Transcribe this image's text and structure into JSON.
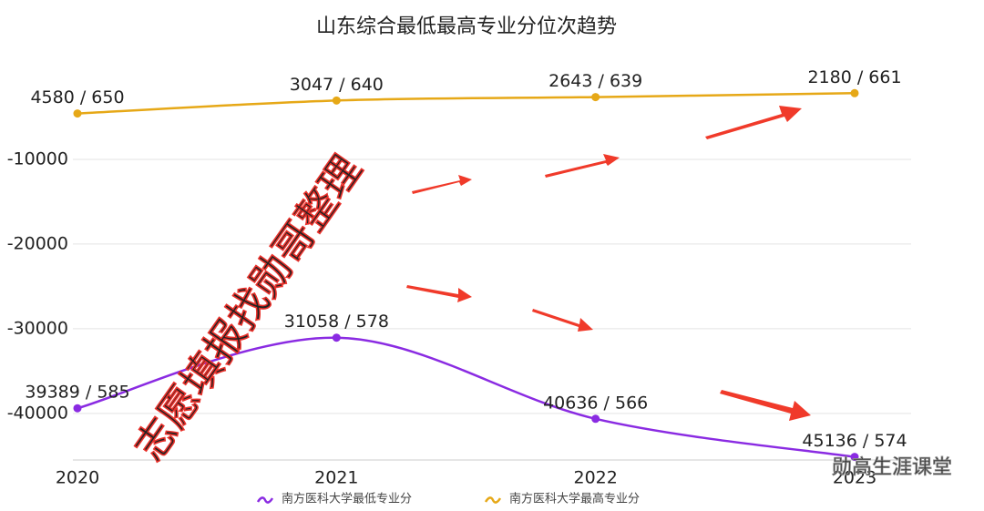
{
  "chart_data": {
    "type": "line",
    "title": "山东综合最低最高专业分位次趋势",
    "categories": [
      "2020",
      "2021",
      "2022",
      "2023"
    ],
    "series": [
      {
        "name": "南方医科大学最低专业分",
        "color": "#8a2be2",
        "values": [
          -39389,
          -31058,
          -40636,
          -45136
        ],
        "value_labels": [
          "39389 / 585",
          "31058 / 578",
          "40636 / 566",
          "45136 / 574"
        ]
      },
      {
        "name": "南方医科大学最高专业分",
        "color": "#e6a817",
        "values": [
          -4580,
          -3047,
          -2643,
          -2180
        ],
        "value_labels": [
          "4580 / 650",
          "3047 / 640",
          "2643 / 639",
          "2180 / 661"
        ]
      }
    ],
    "ylim": [
      -45500,
      0
    ],
    "yticks": [
      -40000,
      -30000,
      -20000,
      -10000
    ],
    "grid": true,
    "annotations": [
      "志愿填报找勋哥整理",
      "勋高生涯课堂"
    ]
  }
}
